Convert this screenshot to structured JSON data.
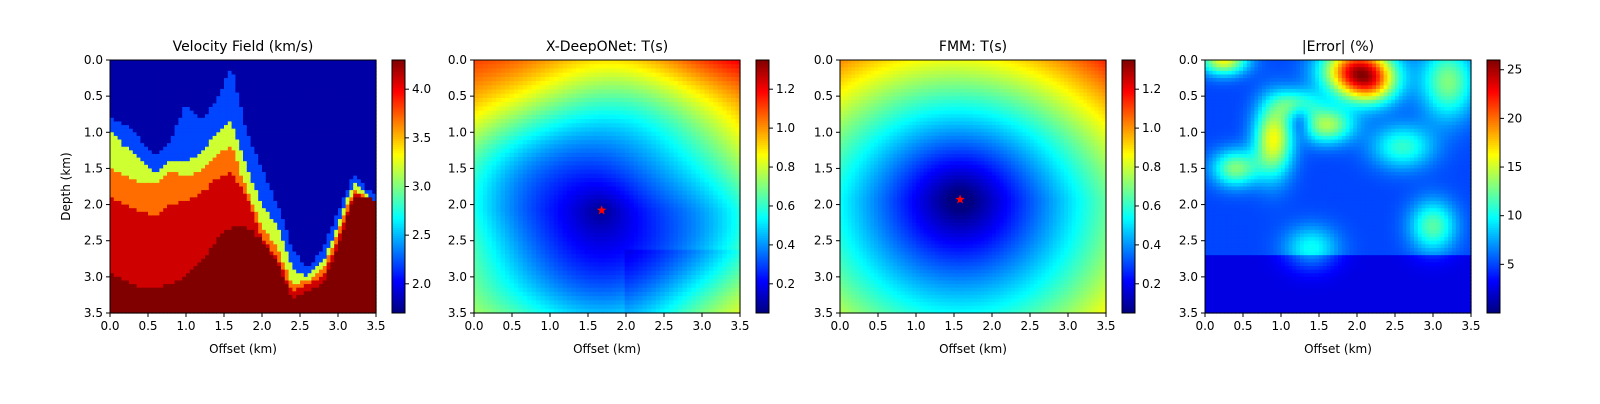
{
  "chart_data": [
    {
      "type": "heatmap",
      "title": "Velocity Field (km/s)",
      "xlabel": "Offset (km)",
      "ylabel": "Depth (km)",
      "xlim": [
        0,
        3.5
      ],
      "ylim": [
        3.5,
        0
      ],
      "xticks": [
        "0.0",
        "0.5",
        "1.0",
        "1.5",
        "2.0",
        "2.5",
        "3.0",
        "3.5"
      ],
      "yticks": [
        "0.0",
        "0.5",
        "1.0",
        "1.5",
        "2.0",
        "2.5",
        "3.0",
        "3.5"
      ],
      "colormap": "jet",
      "colorbar": {
        "min": 1.7,
        "max": 4.3,
        "ticks": [
          "2.0",
          "2.5",
          "3.0",
          "3.5",
          "4.0"
        ]
      },
      "layers_km_s": [
        1.8,
        2.2,
        3.2,
        3.7,
        4.1,
        4.3
      ]
    },
    {
      "type": "heatmap",
      "title": "X-DeepONet: T(s)",
      "xlabel": "Offset (km)",
      "ylabel": "",
      "xlim": [
        0,
        3.5
      ],
      "ylim": [
        3.5,
        0
      ],
      "xticks": [
        "0.0",
        "0.5",
        "1.0",
        "1.5",
        "2.0",
        "2.5",
        "3.0",
        "3.5"
      ],
      "yticks": [
        "0.0",
        "0.5",
        "1.0",
        "1.5",
        "2.0",
        "2.5",
        "3.0",
        "3.5"
      ],
      "colormap": "jet",
      "colorbar": {
        "min": 0.05,
        "max": 1.35,
        "ticks": [
          "0.2",
          "0.4",
          "0.6",
          "0.8",
          "1.0",
          "1.2"
        ]
      },
      "source": {
        "x": 1.68,
        "y": 2.08
      }
    },
    {
      "type": "heatmap",
      "title": "FMM: T(s)",
      "xlabel": "Offset (km)",
      "ylabel": "",
      "xlim": [
        0,
        3.5
      ],
      "ylim": [
        3.5,
        0
      ],
      "xticks": [
        "0.0",
        "0.5",
        "1.0",
        "1.5",
        "2.0",
        "2.5",
        "3.0",
        "3.5"
      ],
      "yticks": [
        "0.0",
        "0.5",
        "1.0",
        "1.5",
        "2.0",
        "2.5",
        "3.0",
        "3.5"
      ],
      "colormap": "jet",
      "colorbar": {
        "min": 0.05,
        "max": 1.35,
        "ticks": [
          "0.2",
          "0.4",
          "0.6",
          "0.8",
          "1.0",
          "1.2"
        ]
      },
      "source": {
        "x": 1.58,
        "y": 1.93
      }
    },
    {
      "type": "heatmap",
      "title": "|Error| (%)",
      "xlabel": "Offset (km)",
      "ylabel": "",
      "xlim": [
        0,
        3.5
      ],
      "ylim": [
        3.5,
        0
      ],
      "xticks": [
        "0.0",
        "0.5",
        "1.0",
        "1.5",
        "2.0",
        "2.5",
        "3.0",
        "3.5"
      ],
      "yticks": [
        "0.0",
        "0.5",
        "1.0",
        "1.5",
        "2.0",
        "2.5",
        "3.0",
        "3.5"
      ],
      "colormap": "jet",
      "colorbar": {
        "min": 0,
        "max": 26,
        "ticks": [
          "5",
          "10",
          "15",
          "20",
          "25"
        ]
      }
    }
  ]
}
